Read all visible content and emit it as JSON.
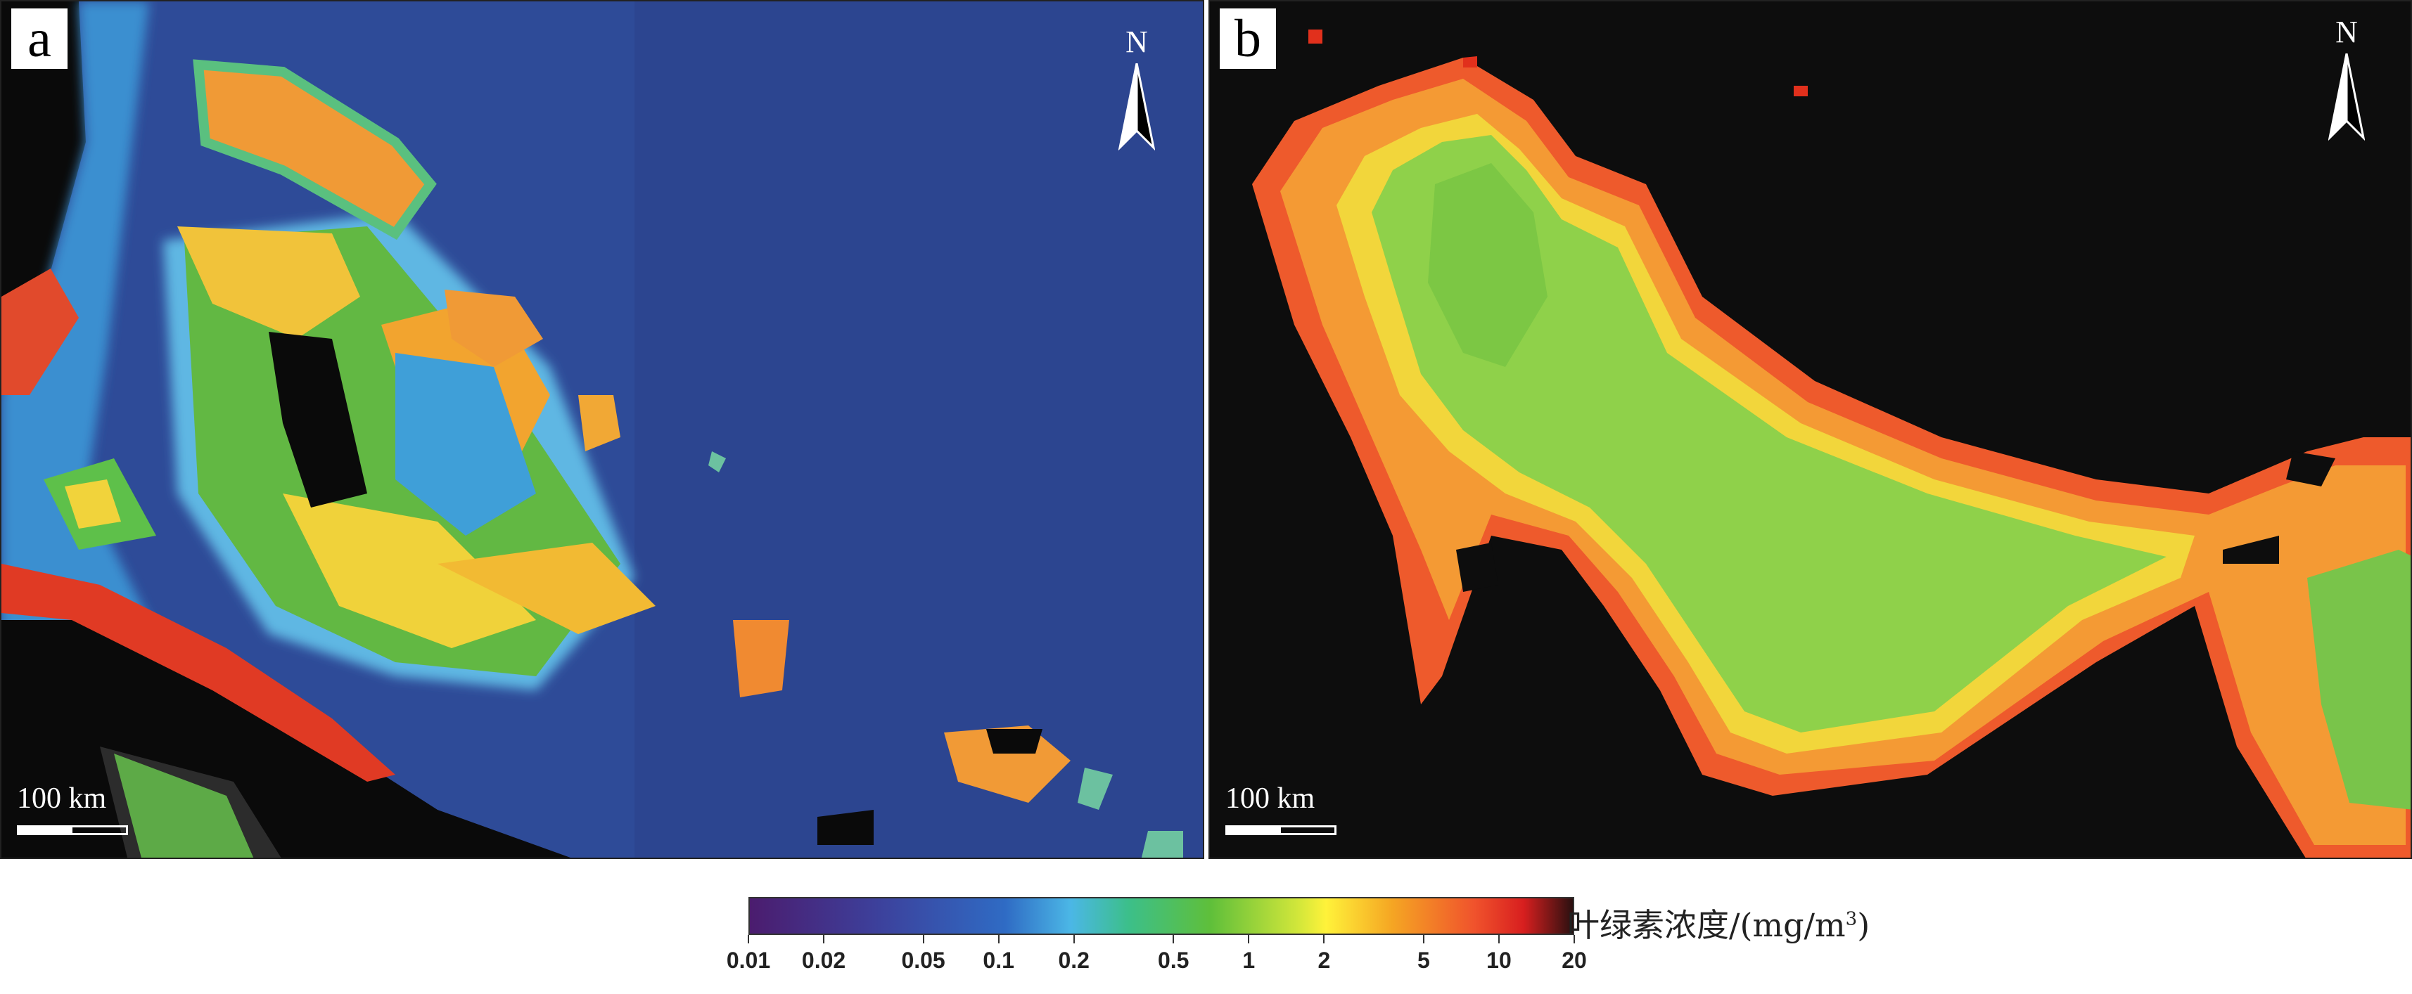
{
  "panels": {
    "a": {
      "label": "a",
      "north": "N",
      "scale": "100 km"
    },
    "b": {
      "label": "b",
      "north": "N",
      "scale": "100 km"
    }
  },
  "legend": {
    "title": "叶绿素浓度/(mg/m",
    "title_sup": "3",
    "title_close": ")",
    "ticks": [
      "0.01",
      "0.02",
      "0.05",
      "0.1",
      "0.2",
      "0.5",
      "1",
      "2",
      "5",
      "10",
      "20"
    ],
    "range": [
      0.01,
      20
    ],
    "scale": "log",
    "colormap": [
      "#4b1c6e",
      "#3d3f9a",
      "#2f6bc4",
      "#4bb7e6",
      "#3cbf8a",
      "#5fbf3a",
      "#fff23a",
      "#f5a623",
      "#f0532c",
      "#d81f1f",
      "#2a1010"
    ]
  },
  "icons": [
    "north-arrow-icon",
    "scale-bar-icon"
  ]
}
